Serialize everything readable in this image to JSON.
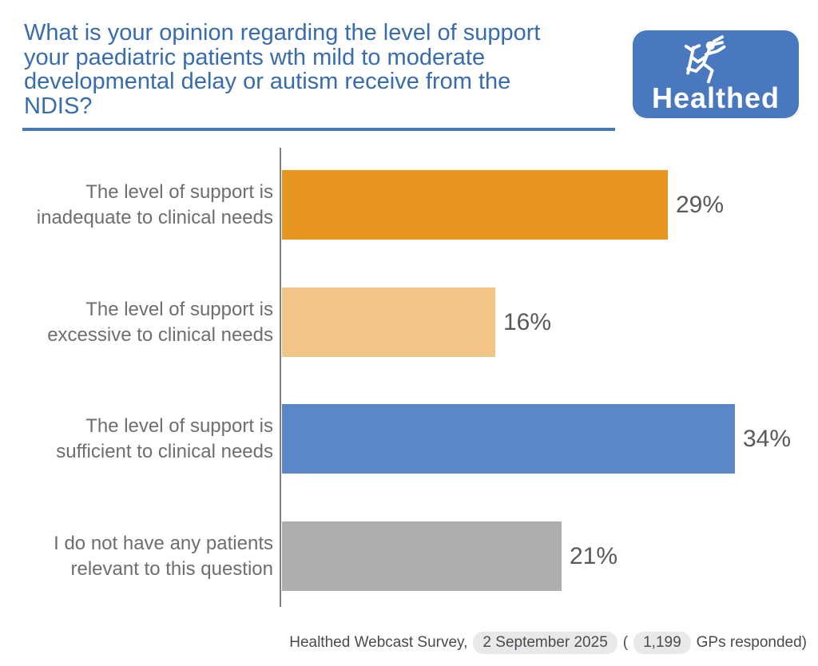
{
  "header": {
    "title_lines": {
      "0": "What is your opinion regarding the level of support",
      "1": "your paediatric patients wth mild to moderate",
      "2": "developmental delay or autism receive from the",
      "3": "NDIS?"
    },
    "logo_text": "Healthed"
  },
  "chart_data": {
    "type": "bar",
    "orientation": "horizontal",
    "title": "What is your opinion regarding the level of support your paediatric patients wth mild to moderate developmental delay or autism receive from the NDIS?",
    "categories": [
      "The level of support is\ninadequate to clinical needs",
      "The level of support is\nexcessive to clinical needs",
      "The level of support is\nsufficient to clinical needs",
      "I do not have any patients\nrelevant to this question"
    ],
    "values": [
      29,
      16,
      34,
      21
    ],
    "value_labels": [
      "29%",
      "16%",
      "34%",
      "21%"
    ],
    "bar_colors": [
      "#E8951F",
      "#F0C585",
      "#5B86C7",
      "#AEAEAE"
    ],
    "xlim": [
      0,
      36
    ],
    "grid": false,
    "legend": "none"
  },
  "colors": {
    "title_blue": "#376CAD",
    "rule_blue": "#4A7AB5",
    "logo_blue": "#4A78BE",
    "axis_gray": "#7F7F7F",
    "category_label_gray": "#6E6E6E",
    "value_label_gray": "#58595B",
    "footer_text": "#4B4B4D",
    "pill_background": "#E9E9EC"
  },
  "footer": {
    "prefix": "Healthed Webcast Survey,",
    "date": "2 September 2025",
    "open_paren": "(",
    "count": "1,199",
    "suffix": "GPs responded)"
  }
}
